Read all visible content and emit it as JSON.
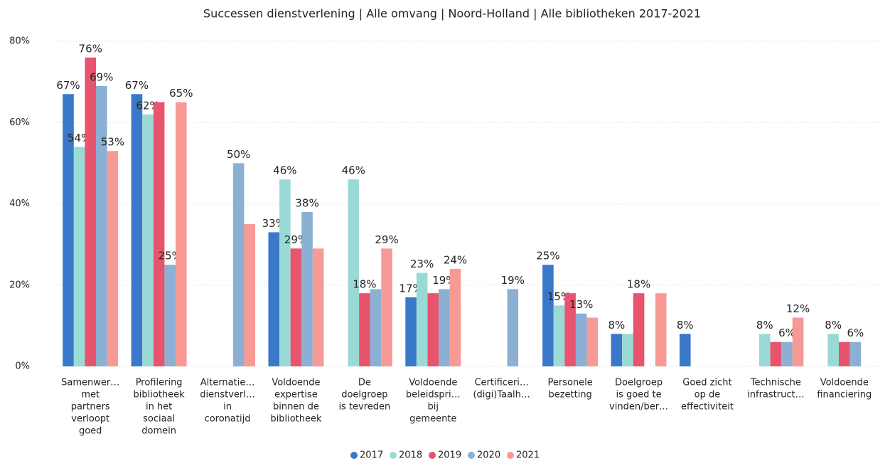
{
  "chart_data": {
    "type": "bar",
    "title": "Successen dienstverlening | Alle omvang | Noord-Holland | Alle bibliotheken 2017-2021",
    "categories": [
      [
        "Samenwer…",
        "met",
        "partners",
        "verloopt",
        "goed"
      ],
      [
        "Profilering",
        "bibliotheek",
        "in het",
        "sociaal",
        "domein"
      ],
      [
        "Alternatie…",
        "dienstverl…",
        "in",
        "coronatijd"
      ],
      [
        "Voldoende",
        "expertise",
        "binnen de",
        "bibliotheek"
      ],
      [
        "De",
        "doelgroep",
        "is tevreden"
      ],
      [
        "Voldoende",
        "beleidspri…",
        "bij",
        "gemeente"
      ],
      [
        "Certificeri…",
        "(digi)Taalh…"
      ],
      [
        "Personele",
        "bezetting"
      ],
      [
        "Doelgroep",
        "is goed te",
        "vinden/ber…"
      ],
      [
        "Goed zicht",
        "op de",
        "effectiviteit"
      ],
      [
        "Technische",
        "infrastruct…"
      ],
      [
        "Voldoende",
        "financiering"
      ]
    ],
    "series": [
      {
        "name": "2017",
        "color": "#3a78c9",
        "values": [
          67,
          67,
          null,
          33,
          null,
          17,
          null,
          25,
          8,
          8,
          null,
          null
        ],
        "value_labels": [
          "67%",
          "67%",
          null,
          "33%",
          null,
          "17%",
          null,
          "25%",
          "8%",
          "8%",
          null,
          null
        ]
      },
      {
        "name": "2018",
        "color": "#9adad6",
        "values": [
          54,
          62,
          null,
          46,
          46,
          23,
          null,
          15,
          8,
          null,
          8,
          8
        ],
        "value_labels": [
          "54%",
          "62%",
          null,
          "46%",
          "46%",
          "23%",
          null,
          "15%",
          null,
          null,
          "8%",
          "8%"
        ]
      },
      {
        "name": "2019",
        "color": "#e8546e",
        "values": [
          76,
          65,
          null,
          29,
          18,
          18,
          null,
          18,
          18,
          null,
          6,
          6
        ],
        "value_labels": [
          "76%",
          null,
          null,
          "29%",
          "18%",
          null,
          null,
          null,
          "18%",
          null,
          null,
          null
        ]
      },
      {
        "name": "2020",
        "color": "#8bb0d3",
        "values": [
          69,
          25,
          50,
          38,
          19,
          19,
          19,
          13,
          null,
          null,
          6,
          6
        ],
        "value_labels": [
          "69%",
          "25%",
          "50%",
          "38%",
          null,
          "19%",
          "19%",
          "13%",
          null,
          null,
          "6%",
          "6%"
        ]
      },
      {
        "name": "2021",
        "color": "#f79a96",
        "values": [
          53,
          65,
          35,
          29,
          29,
          24,
          null,
          12,
          18,
          null,
          12,
          null
        ],
        "value_labels": [
          "53%",
          "65%",
          null,
          null,
          "29%",
          "24%",
          null,
          null,
          null,
          null,
          "12%",
          null
        ]
      }
    ],
    "ylim": [
      0,
      80
    ],
    "yticks": [
      {
        "value": 0,
        "label": "0%"
      },
      {
        "value": 20,
        "label": "20%"
      },
      {
        "value": 40,
        "label": "40%"
      },
      {
        "value": 60,
        "label": "60%"
      },
      {
        "value": 80,
        "label": "80%"
      }
    ],
    "grid": true,
    "legend": "bottom"
  }
}
